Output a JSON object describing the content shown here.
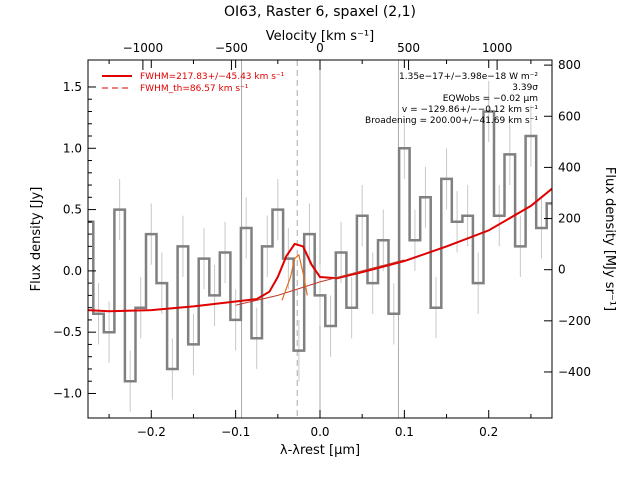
{
  "chart_data": {
    "type": "line",
    "title": "OI63, Raster 6, spaxel (2,1)",
    "xlabel": "λ-λrest [μm]",
    "ylabel": "Flux density [Jy]",
    "x2label": "Velocity [km s⁻¹]",
    "y2label": "Flux density [MJy sr⁻¹]",
    "xlim": [
      -0.275,
      0.275
    ],
    "ylim": [
      -1.2,
      1.72
    ],
    "x2lim": [
      -1310,
      1310
    ],
    "y2lim": [
      -580,
      820
    ],
    "x_ticks": [
      -0.2,
      -0.1,
      0.0,
      0.1,
      0.2
    ],
    "x_tick_labels": [
      "−0.2",
      "−0.1",
      "0.0",
      "0.1",
      "0.2"
    ],
    "y_ticks": [
      -1.0,
      -0.5,
      0.0,
      0.5,
      1.0,
      1.5
    ],
    "y_tick_labels": [
      "−1.0",
      "−0.5",
      "0.0",
      "0.5",
      "1.0",
      "1.5"
    ],
    "x2_ticks": [
      -1000,
      -500,
      0,
      500,
      1000
    ],
    "x2_tick_labels": [
      "−1000",
      "−500",
      "0",
      "500",
      "1000"
    ],
    "y2_ticks": [
      -400,
      -200,
      0,
      200,
      400,
      600,
      800
    ],
    "y2_tick_labels": [
      "−400",
      "−200",
      "0",
      "200",
      "400",
      "600",
      "800"
    ],
    "vlines_solid": [
      -0.093,
      0.0,
      0.093
    ],
    "vline_dashed": -0.027,
    "legend": [
      {
        "label": "FWHM=217.83+/−45.43 km s⁻¹",
        "style": "solid",
        "color": "#e00000"
      },
      {
        "label": "FWHM_th=86.57 km s⁻¹",
        "style": "dashed",
        "color": "#e00000"
      }
    ],
    "annotations": [
      "1.35e−17+/−3.98e−18 W m⁻²",
      "3.39σ",
      "EQWobs = −0.02 μm",
      "v = −129.86+/−−0.12 km s⁻¹",
      "Broadening = 200.00+/−41.69 km s⁻¹"
    ],
    "series": [
      {
        "style": "step",
        "color": "#808080",
        "x": [
          -0.275,
          -0.2625,
          -0.25,
          -0.2375,
          -0.225,
          -0.2125,
          -0.2,
          -0.1875,
          -0.175,
          -0.1625,
          -0.15,
          -0.1375,
          -0.125,
          -0.1125,
          -0.1,
          -0.0875,
          -0.075,
          -0.0625,
          -0.05,
          -0.0375,
          -0.025,
          -0.0125,
          0.0,
          0.0125,
          0.025,
          0.0375,
          0.05,
          0.0625,
          0.075,
          0.0875,
          0.1,
          0.1125,
          0.125,
          0.1375,
          0.15,
          0.1625,
          0.175,
          0.1875,
          0.2,
          0.2125,
          0.225,
          0.2375,
          0.25,
          0.2625,
          0.275
        ],
        "y": [
          0.4,
          -0.35,
          -0.5,
          0.5,
          -0.9,
          -0.3,
          0.3,
          -0.1,
          -0.8,
          0.2,
          -0.6,
          0.1,
          -0.2,
          0.15,
          -0.4,
          0.35,
          -0.55,
          0.2,
          0.5,
          0.1,
          -0.65,
          0.3,
          -0.2,
          -0.45,
          0.15,
          -0.3,
          0.45,
          -0.1,
          0.25,
          -0.35,
          1.0,
          0.25,
          0.6,
          -0.3,
          0.75,
          0.4,
          0.45,
          -0.1,
          1.3,
          0.45,
          0.95,
          0.2,
          1.1,
          0.35,
          0.55
        ],
        "err": 0.25
      },
      {
        "style": "line",
        "color": "#e00000",
        "description_free": true,
        "x": [
          -0.275,
          -0.25,
          -0.2,
          -0.15,
          -0.1,
          -0.075,
          -0.06,
          -0.05,
          -0.04,
          -0.03,
          -0.02,
          -0.01,
          0.0,
          0.02,
          0.05,
          0.1,
          0.15,
          0.2,
          0.25,
          0.275
        ],
        "y": [
          -0.32,
          -0.33,
          -0.32,
          -0.29,
          -0.25,
          -0.23,
          -0.17,
          -0.05,
          0.12,
          0.22,
          0.2,
          0.05,
          -0.05,
          -0.06,
          -0.01,
          0.08,
          0.2,
          0.33,
          0.53,
          0.67
        ]
      },
      {
        "style": "line",
        "color": "#c0392b",
        "x": [
          -0.1,
          -0.05,
          0.0,
          0.05,
          0.1
        ],
        "y": [
          -0.28,
          -0.2,
          -0.09,
          0.0,
          0.09
        ]
      },
      {
        "style": "line",
        "color": "#e07020",
        "x": [
          -0.045,
          -0.035,
          -0.03,
          -0.025,
          -0.02,
          -0.015
        ],
        "y": [
          -0.24,
          -0.05,
          0.1,
          0.13,
          -0.02,
          -0.2
        ]
      }
    ]
  }
}
